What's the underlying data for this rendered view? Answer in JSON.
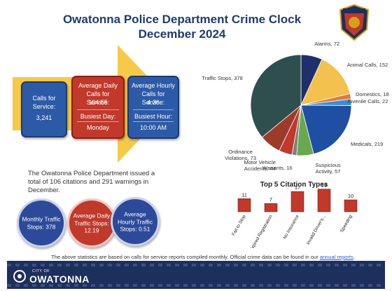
{
  "title_line1": "Owatonna Police Department Crime Clock",
  "title_line2": "December 2024",
  "badge_text": "POLICE OWATONNA",
  "boxes": {
    "calls_label": "Calls for Service:",
    "calls_value": "3,241",
    "avg_daily_label": "Average Daily Calls for Service:",
    "avg_daily_value": "104.55",
    "busiest_day_label": "Busiest Day:",
    "busiest_day_value": "Monday",
    "avg_hourly_label": "Average Hourly Calls for Service:",
    "avg_hourly_value": "4.36",
    "busiest_hour_label": "Busiest Hour:",
    "busiest_hour_value": "10:00 AM"
  },
  "summary": "The Owatonna Police Department issued a total of 106 citations and 291 warnings in December.",
  "circles": [
    {
      "text": "Monthly Traffic Stops: 378",
      "color": "#2d4a9a"
    },
    {
      "text": "Average Daily Traffic Stops: 12.19",
      "color": "#c0392b"
    },
    {
      "text": "Average Hourly Traffic Stops: 0.51",
      "color": "#2d4a9a"
    }
  ],
  "footnote_text": "The above statistics are based on calls for service reports compiled monthly.  Official crime data can be found in our",
  "footnote_link": "annual reports",
  "footnote_end": ".",
  "footer": {
    "city_small": "CITY OF",
    "city_big": "OWATONNA"
  },
  "chart_data": [
    {
      "type": "pie",
      "slices": [
        {
          "label": "Alarms",
          "value": 72,
          "color": "#1f2f6b"
        },
        {
          "label": "Animal Calls",
          "value": 152,
          "color": "#f2c14e"
        },
        {
          "label": "Domestics",
          "value": 18,
          "color": "#e07b39"
        },
        {
          "label": "Juvenile Calls",
          "value": 22,
          "color": "#3a8fd6"
        },
        {
          "label": "Medicals",
          "value": 219,
          "color": "#1e4fa3"
        },
        {
          "label": "Suspicious Activity",
          "value": 57,
          "color": "#6aa84f"
        },
        {
          "label": "Warrants",
          "value": 16,
          "color": "#7f7f7f"
        },
        {
          "label": "Motor Vehicle Accidents",
          "value": 44,
          "color": "#c0392b"
        },
        {
          "label": "Ordinance Violations",
          "value": 73,
          "color": "#9c3b2a"
        },
        {
          "label": "Traffic Stops",
          "value": 378,
          "color": "#2f4f4f"
        }
      ],
      "labels": [
        {
          "text": "Alarms, 72"
        },
        {
          "text": "Animal Calls, 152"
        },
        {
          "text": "Domestics, 18"
        },
        {
          "text": "Juvenile Calls, 22"
        },
        {
          "text": "Medicals, 219"
        },
        {
          "text": "Suspicious Activity, 57"
        },
        {
          "text": "Warrants, 16"
        },
        {
          "text": "Motor Vehicle Accidents, 44"
        },
        {
          "text": "Ordinance Violations, 73"
        },
        {
          "text": "Traffic Stops, 378"
        }
      ]
    },
    {
      "type": "bar",
      "title": "Top 5 Citation Types",
      "categories": [
        "Fail to Stop",
        "Expired Registration",
        "No Insurance",
        "Invalid Driver's...",
        "Speeding"
      ],
      "values": [
        11,
        7,
        17,
        19,
        10
      ],
      "data_labels": [
        "11",
        "7",
        "17",
        "19",
        "10"
      ],
      "ylim": [
        0,
        20
      ],
      "color": "#c0392b"
    }
  ]
}
